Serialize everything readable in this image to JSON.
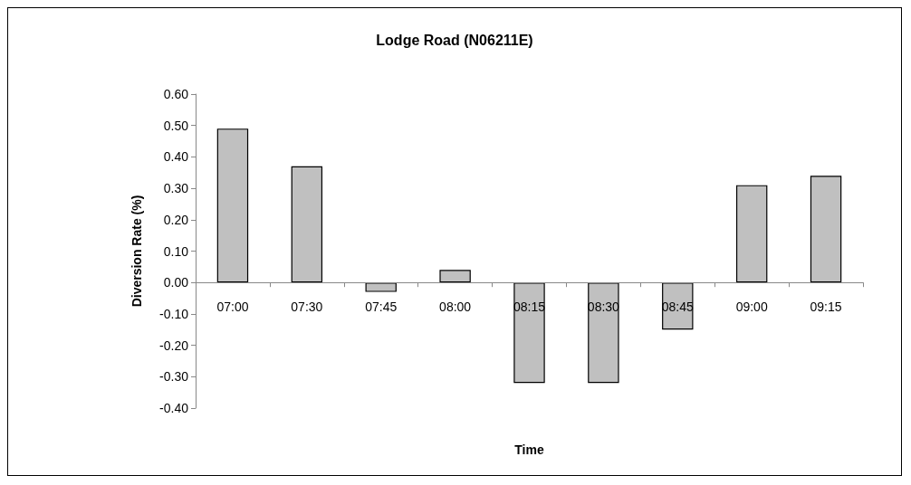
{
  "chart_data": {
    "type": "bar",
    "title": "Lodge Road (N06211E)",
    "xlabel": "Time",
    "ylabel": "Diversion Rate (%)",
    "categories": [
      "07:00",
      "07:30",
      "07:45",
      "08:00",
      "08:15",
      "08:30",
      "08:45",
      "09:00",
      "09:15"
    ],
    "values": [
      0.49,
      0.37,
      -0.03,
      0.04,
      -0.32,
      -0.32,
      -0.15,
      0.31,
      0.34
    ],
    "color": "#c0c0c0",
    "ylim": [
      -0.4,
      0.6
    ],
    "yticks": [
      {
        "value": -0.4,
        "label": "-0.40"
      },
      {
        "value": -0.3,
        "label": "-0.30"
      },
      {
        "value": -0.2,
        "label": "-0.20"
      },
      {
        "value": -0.1,
        "label": "-0.10"
      },
      {
        "value": 0,
        "label": "0.00"
      },
      {
        "value": 0.1,
        "label": "0.10"
      },
      {
        "value": 0.2,
        "label": "0.20"
      },
      {
        "value": 0.3,
        "label": "0.30"
      },
      {
        "value": 0.4,
        "label": "0.40"
      },
      {
        "value": 0.5,
        "label": "0.50"
      },
      {
        "value": 0.6,
        "label": "0.60"
      }
    ]
  }
}
